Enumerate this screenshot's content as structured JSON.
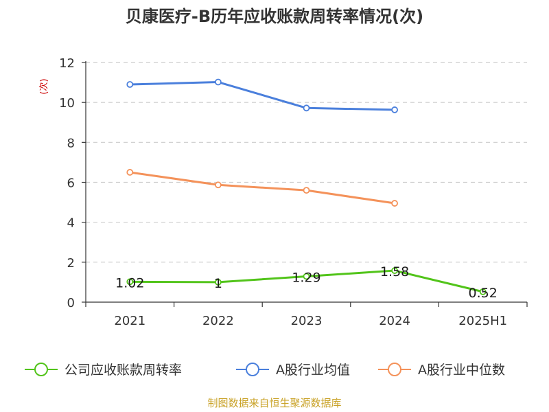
{
  "chart_data": {
    "type": "line",
    "title": "贝康医疗-B历年应收账款周转率情况(次)",
    "ylabel": "(次)",
    "xlabel": "",
    "categories": [
      "2021",
      "2022",
      "2023",
      "2024",
      "2025H1"
    ],
    "ylim": [
      0,
      12
    ],
    "yticks": [
      0,
      2,
      4,
      6,
      8,
      10,
      12
    ],
    "grid": true,
    "legend_position": "bottom",
    "series": [
      {
        "name": "公司应收账款周转率",
        "color": "#52c41a",
        "values": [
          1.02,
          1.0,
          1.29,
          1.58,
          0.52
        ],
        "labels": [
          "1.02",
          "1",
          "1.29",
          "1.58",
          "0.52"
        ]
      },
      {
        "name": "A股行业均值",
        "color": "#4a7fdc",
        "values": [
          10.9,
          11.02,
          9.72,
          9.63,
          null
        ]
      },
      {
        "name": "A股行业中位数",
        "color": "#f4925a",
        "values": [
          6.5,
          5.87,
          5.6,
          4.95,
          null
        ]
      }
    ]
  },
  "colors": {
    "axis": "#333333",
    "grid": "#cccccc",
    "unit": "#cc0000",
    "source": "#c9a227"
  },
  "source_text": "制图数据来自恒生聚源数据库"
}
